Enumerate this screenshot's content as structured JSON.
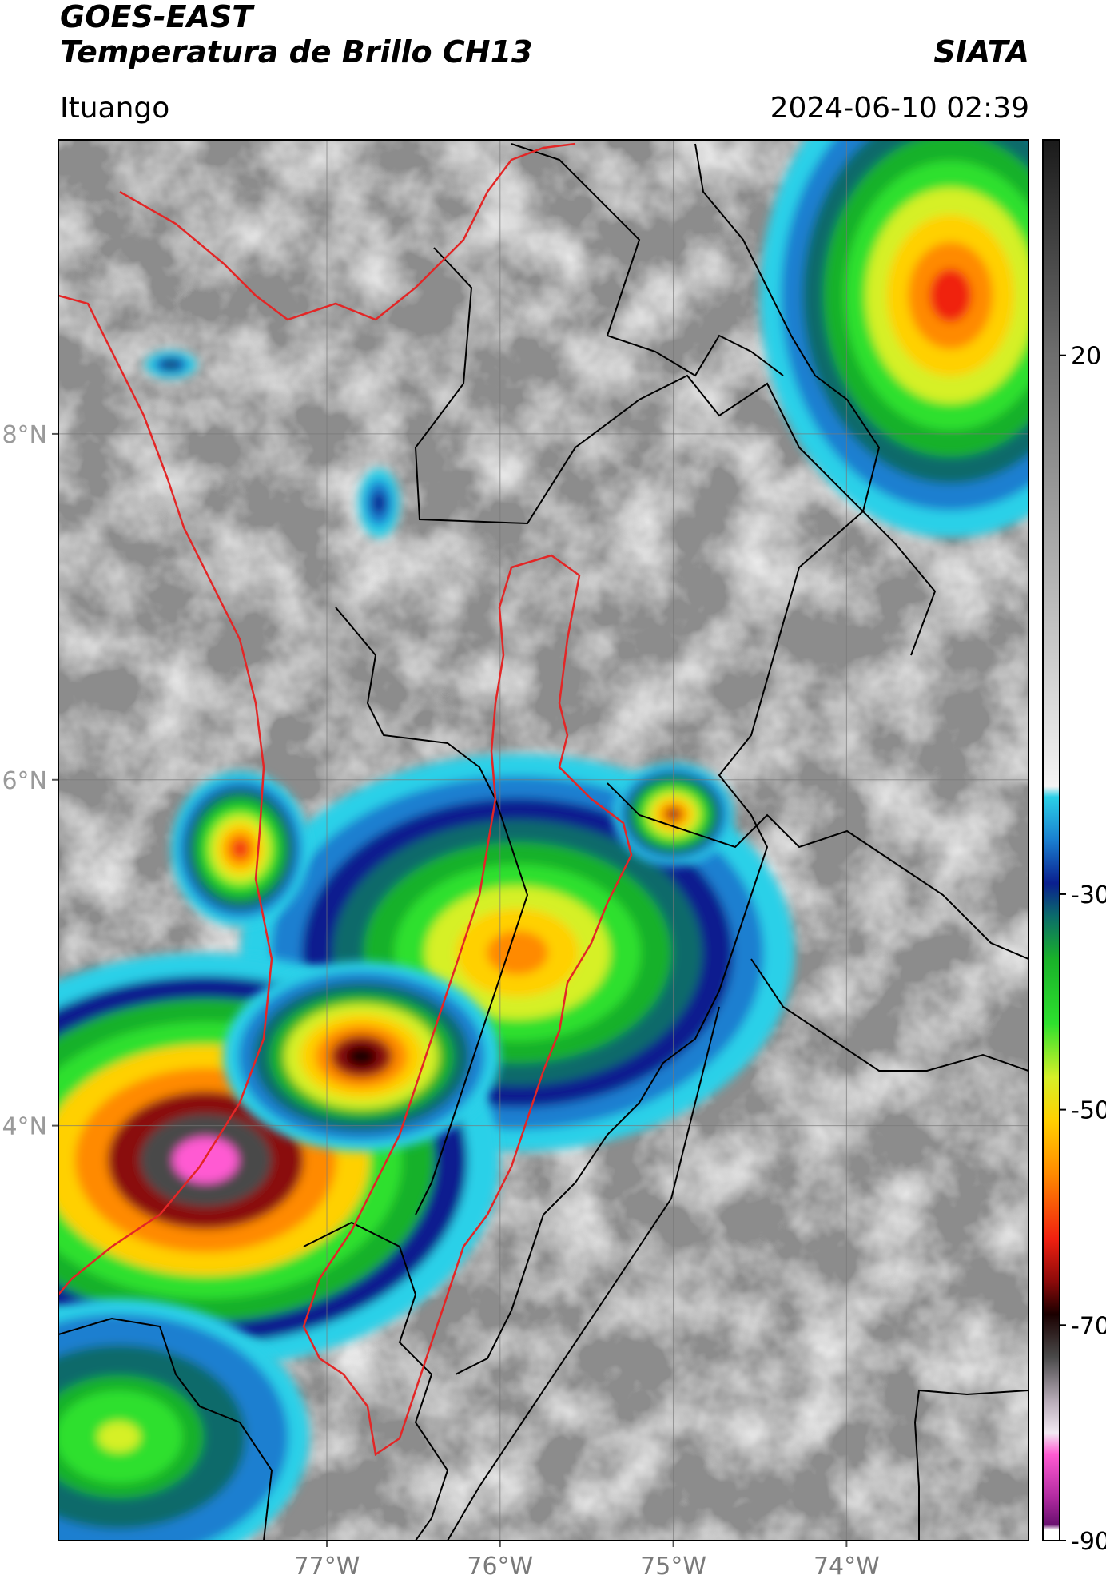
{
  "header": {
    "title_line1": "GOES-EAST",
    "title_line2": "Temperatura de Brillo CH13",
    "organization": "SIATA",
    "region": "Ituango",
    "datetime": "2024-06-10 02:39"
  },
  "map": {
    "extent": {
      "lon_min": -78.55,
      "lon_max": -72.95,
      "lat_min": 1.6,
      "lat_max": 9.7
    },
    "lat_ticks": [
      {
        "value": 8,
        "label": "8°N"
      },
      {
        "value": 6,
        "label": "6°N"
      },
      {
        "value": 4,
        "label": "4°N"
      }
    ],
    "lon_ticks": [
      {
        "value": -77,
        "label": "77°W"
      },
      {
        "value": -76,
        "label": "76°W"
      },
      {
        "value": -75,
        "label": "75°W"
      },
      {
        "value": -74,
        "label": "74°W"
      }
    ],
    "grid": true,
    "background_color": "#8c8c8c",
    "boundary_colors": {
      "departments": "#000000",
      "region": "#e32626"
    }
  },
  "colorbar": {
    "range": [
      -90,
      40
    ],
    "ticks": [
      {
        "value": 20,
        "label": "20"
      },
      {
        "value": -30,
        "label": "-30"
      },
      {
        "value": -50,
        "label": "-50"
      },
      {
        "value": -70,
        "label": "-70"
      },
      {
        "value": -90,
        "label": "-90"
      }
    ],
    "stops": [
      {
        "value": 40,
        "color": "#1a1a1a"
      },
      {
        "value": 20,
        "color": "#6e6e6e"
      },
      {
        "value": -20,
        "color": "#f4f4f4"
      },
      {
        "value": -21,
        "color": "#2ad0e8"
      },
      {
        "value": -25,
        "color": "#1a7fd0"
      },
      {
        "value": -29,
        "color": "#0a1f8f"
      },
      {
        "value": -32,
        "color": "#0b6b6b"
      },
      {
        "value": -36,
        "color": "#19b12a"
      },
      {
        "value": -42,
        "color": "#2ee02e"
      },
      {
        "value": -47,
        "color": "#d6f028"
      },
      {
        "value": -51,
        "color": "#ffd000"
      },
      {
        "value": -56,
        "color": "#ff8a00"
      },
      {
        "value": -62,
        "color": "#f02010"
      },
      {
        "value": -66,
        "color": "#8a0a0a"
      },
      {
        "value": -69,
        "color": "#1a0000"
      },
      {
        "value": -73,
        "color": "#4a4a4a"
      },
      {
        "value": -77,
        "color": "#b7aab7"
      },
      {
        "value": -80,
        "color": "#f2e8f2"
      },
      {
        "value": -82,
        "color": "#ff5ad2"
      },
      {
        "value": -86,
        "color": "#b02aa0"
      },
      {
        "value": -88.5,
        "color": "#6a1070"
      },
      {
        "value": -89,
        "color": "#ffffff"
      },
      {
        "value": -90,
        "color": "#ffffff"
      }
    ]
  },
  "storms": [
    {
      "lon": -75.9,
      "lat": 5.0,
      "peak": -58,
      "rx": 1.6,
      "ry": 1.15
    },
    {
      "lon": -75.0,
      "lat": 5.8,
      "peak": -67,
      "rx": 0.35,
      "ry": 0.3
    },
    {
      "lon": -77.7,
      "lat": 3.8,
      "peak": -83,
      "rx": 1.7,
      "ry": 1.2
    },
    {
      "lon": -76.8,
      "lat": 4.4,
      "peak": -73,
      "rx": 0.8,
      "ry": 0.55
    },
    {
      "lon": -78.2,
      "lat": 2.2,
      "peak": -50,
      "rx": 1.1,
      "ry": 0.8
    },
    {
      "lon": -77.5,
      "lat": 5.6,
      "peak": -64,
      "rx": 0.4,
      "ry": 0.45
    },
    {
      "lon": -73.4,
      "lat": 8.8,
      "peak": -66,
      "rx": 1.1,
      "ry": 1.4
    },
    {
      "lon": -77.9,
      "lat": 8.4,
      "peak": -34,
      "rx": 0.15,
      "ry": 0.08
    },
    {
      "lon": -76.7,
      "lat": 7.6,
      "peak": -32,
      "rx": 0.12,
      "ry": 0.2
    }
  ]
}
